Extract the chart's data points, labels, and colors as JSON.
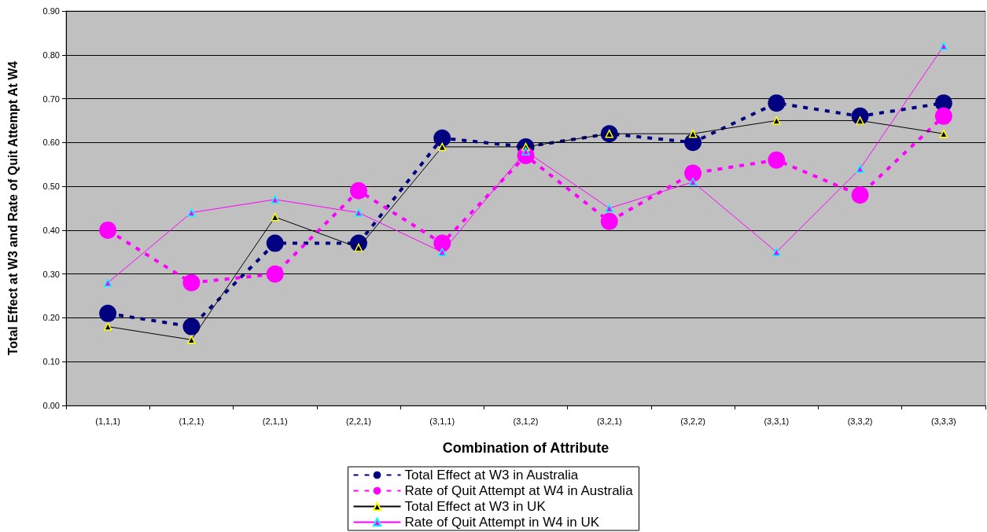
{
  "chart_data": {
    "type": "line",
    "xlabel": "Combination of Attribute",
    "ylabel": "Total Effect at W3 and Rate of Quit Attempt At W4",
    "categories": [
      "(1,1,1)",
      "(1,2,1)",
      "(2,1,1)",
      "(2,2,1)",
      "(3,1,1)",
      "(3,1,2)",
      "(3,2,1)",
      "(3,2,2)",
      "(3,3,1)",
      "(3,3,2)",
      "(3,3,3)"
    ],
    "series": [
      {
        "name": "Total Effect at W3 in Australia",
        "color": "#000080",
        "marker": "circle",
        "line_style": "dashed",
        "values": [
          0.21,
          0.18,
          0.37,
          0.37,
          0.61,
          0.59,
          0.62,
          0.6,
          0.69,
          0.66,
          0.69
        ]
      },
      {
        "name": "Rate of Quit Attempt at W4 in Australia",
        "color": "#ff00ff",
        "marker": "circle",
        "line_style": "dashed",
        "values": [
          0.4,
          0.28,
          0.3,
          0.49,
          0.37,
          0.57,
          0.42,
          0.53,
          0.56,
          0.48,
          0.66
        ]
      },
      {
        "name": "Total Effect at W3 in UK",
        "color": "#000000",
        "marker": "triangle",
        "line_style": "solid",
        "values": [
          0.18,
          0.15,
          0.43,
          0.36,
          0.59,
          0.59,
          0.62,
          0.62,
          0.65,
          0.65,
          0.62
        ]
      },
      {
        "name": "Rate of Quit Attempt in W4 in UK",
        "color": "#ff00ff",
        "marker": "triangle",
        "line_style": "solid",
        "values": [
          0.28,
          0.44,
          0.47,
          0.44,
          0.35,
          0.58,
          0.45,
          0.51,
          0.35,
          0.54,
          0.82
        ]
      }
    ],
    "ylim": [
      0,
      0.9
    ],
    "yticks": [
      {
        "value": 0,
        "label": "0.00"
      },
      {
        "value": 0.1,
        "label": "0.10"
      },
      {
        "value": 0.2,
        "label": "0.20"
      },
      {
        "value": 0.3,
        "label": "0.30"
      },
      {
        "value": 0.4,
        "label": "0.40"
      },
      {
        "value": 0.5,
        "label": "0.50"
      },
      {
        "value": 0.6,
        "label": "0.60"
      },
      {
        "value": 0.7,
        "label": "0.70"
      },
      {
        "value": 0.8,
        "label": "0.80"
      },
      {
        "value": 0.9,
        "label": "0.90"
      }
    ],
    "grid": "y",
    "legend": "bottom"
  }
}
